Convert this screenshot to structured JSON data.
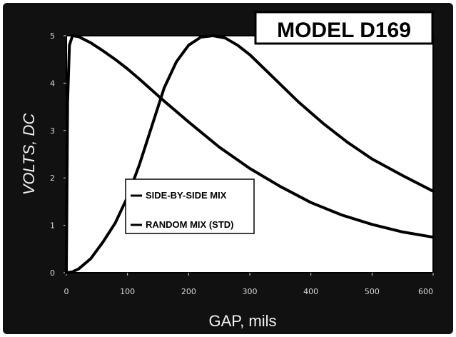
{
  "chart_data": {
    "type": "line",
    "title": "MODEL D169",
    "xlabel": "GAP, mils",
    "ylabel": "VOLTS, DC",
    "xlim": [
      0,
      600
    ],
    "ylim": [
      0,
      5
    ],
    "xticks": [
      "0",
      "100",
      "200",
      "300",
      "400",
      "500",
      "600"
    ],
    "yticks": [
      "0",
      "1",
      "2",
      "3",
      "4",
      "5"
    ],
    "grid": false,
    "legend_position": "center-left",
    "series": [
      {
        "name": "SIDE-BY-SIDE MIX",
        "color": "#000000",
        "x": [
          0,
          2,
          5,
          10,
          20,
          40,
          60,
          80,
          100,
          120,
          140,
          160,
          180,
          200,
          250,
          300,
          350,
          400,
          450,
          500,
          550,
          600
        ],
        "y": [
          0,
          3.6,
          4.8,
          5.0,
          4.98,
          4.85,
          4.68,
          4.5,
          4.3,
          4.08,
          3.85,
          3.62,
          3.4,
          3.18,
          2.65,
          2.2,
          1.82,
          1.48,
          1.22,
          1.02,
          0.86,
          0.75
        ]
      },
      {
        "name": "RANDOM MIX (STD)",
        "color": "#000000",
        "x": [
          0,
          10,
          20,
          40,
          60,
          80,
          100,
          120,
          140,
          160,
          180,
          200,
          220,
          240,
          260,
          280,
          300,
          340,
          380,
          420,
          460,
          500,
          550,
          600
        ],
        "y": [
          0,
          0.02,
          0.08,
          0.3,
          0.65,
          1.05,
          1.6,
          2.3,
          3.1,
          3.9,
          4.45,
          4.8,
          4.97,
          5.0,
          4.95,
          4.8,
          4.6,
          4.1,
          3.6,
          3.15,
          2.75,
          2.4,
          2.05,
          1.72
        ]
      }
    ]
  }
}
